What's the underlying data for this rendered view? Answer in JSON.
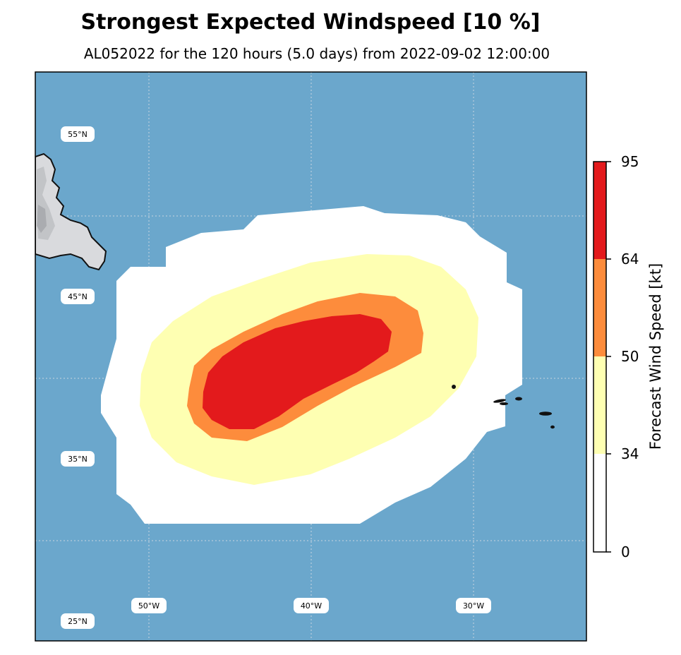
{
  "title": "Strongest Expected Windspeed [10 %]",
  "subtitle": "AL052022 for the 120 hours (5.0 days) from 2022-09-02 12:00:00",
  "colors": {
    "ocean": "#6ba7cc",
    "band_0_34": "#ffffff",
    "band_34_50": "#feffb2",
    "band_50_64": "#fd8c3c",
    "band_64_95": "#e31a1c",
    "land": "#d9dadd",
    "gridline": "#c9d5df"
  },
  "map": {
    "latitude_labels": [
      "55°N",
      "45°N",
      "35°N",
      "25°N"
    ],
    "longitude_labels": [
      "50°W",
      "40°W",
      "30°W"
    ]
  },
  "colorbar": {
    "label": "Forecast Wind Speed [kt]",
    "ticks": [
      "95",
      "64",
      "50",
      "34",
      "0"
    ]
  }
}
